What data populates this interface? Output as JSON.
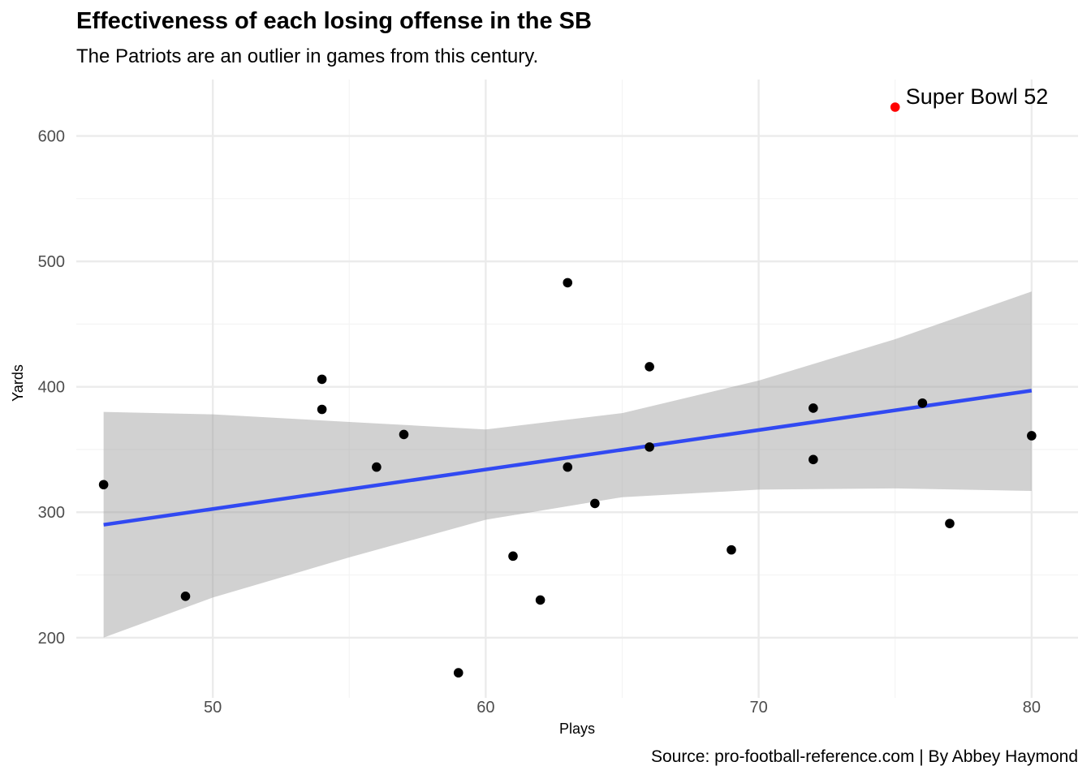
{
  "chart_data": {
    "type": "scatter",
    "title": "Effectiveness of each losing offense in the SB",
    "subtitle": "The Patriots are an outlier in games from this century.",
    "caption": "Source: pro-football-reference.com | By Abbey Haymond",
    "xlabel": "Plays",
    "ylabel": "Yards",
    "xlim": [
      45,
      81.7
    ],
    "ylim": [
      152,
      645
    ],
    "x_ticks": [
      50,
      60,
      70,
      80
    ],
    "y_ticks": [
      200,
      300,
      400,
      500,
      600
    ],
    "grid": true,
    "points": [
      {
        "x": 46,
        "y": 322
      },
      {
        "x": 49,
        "y": 233
      },
      {
        "x": 54,
        "y": 406
      },
      {
        "x": 54,
        "y": 382
      },
      {
        "x": 56,
        "y": 336
      },
      {
        "x": 57,
        "y": 362
      },
      {
        "x": 59,
        "y": 172
      },
      {
        "x": 61,
        "y": 265
      },
      {
        "x": 62,
        "y": 230
      },
      {
        "x": 63,
        "y": 483
      },
      {
        "x": 63,
        "y": 336
      },
      {
        "x": 64,
        "y": 307
      },
      {
        "x": 66,
        "y": 416
      },
      {
        "x": 66,
        "y": 352
      },
      {
        "x": 69,
        "y": 270
      },
      {
        "x": 72,
        "y": 383
      },
      {
        "x": 72,
        "y": 342
      },
      {
        "x": 76,
        "y": 387
      },
      {
        "x": 77,
        "y": 291
      },
      {
        "x": 80,
        "y": 361
      }
    ],
    "highlight": {
      "x": 75,
      "y": 623,
      "label": "Super Bowl 52",
      "color": "#ff0000"
    },
    "trend_line": {
      "x": [
        46,
        80
      ],
      "y": [
        290,
        397
      ],
      "color": "#3149f2"
    },
    "confidence_band": {
      "x": [
        46,
        50,
        55,
        60,
        65,
        70,
        75,
        80
      ],
      "lower": [
        200,
        232,
        264,
        294,
        312,
        318,
        319,
        317
      ],
      "upper": [
        380,
        378,
        372,
        366,
        379,
        405,
        438,
        476
      ],
      "color": "#999999"
    },
    "colors": {
      "point": "#000000",
      "grid": "#ebebeb"
    }
  }
}
